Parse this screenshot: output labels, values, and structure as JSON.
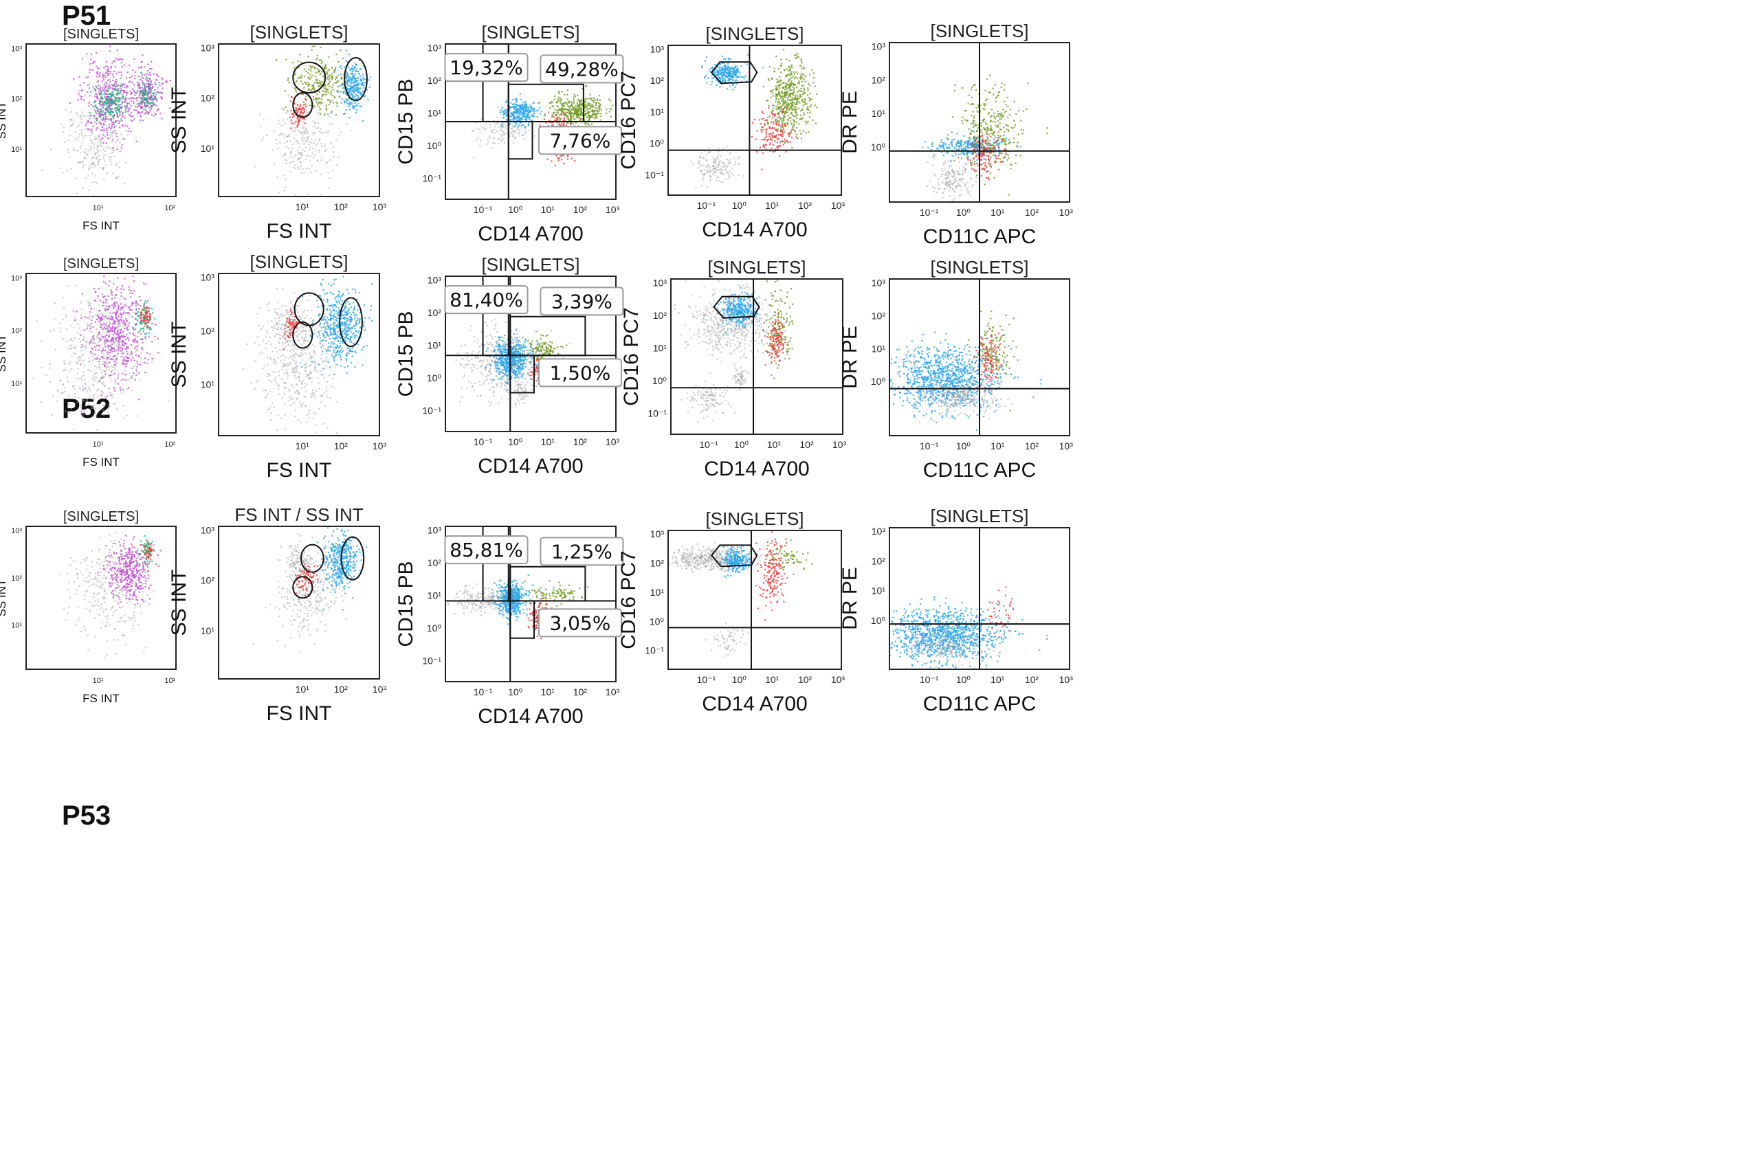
{
  "colors": {
    "grey": "#a6a6a6",
    "blue": "#2aa5e8",
    "green": "#6f9a1f",
    "red": "#e83a3a",
    "magenta": "#c24fd6",
    "teal": "#19b07a",
    "cyan": "#28d0e4"
  },
  "rows": [
    {
      "label": "P51",
      "panels": [
        {
          "title": "[SINGLETS]",
          "xlabel": "FS INT",
          "ylabel": "SS INT",
          "xticks": [
            "10¹",
            "10²"
          ],
          "yticks": [
            "10³",
            "10²",
            "10¹"
          ]
        },
        {
          "title": "[SINGLETS]",
          "xlabel": "FS INT",
          "ylabel": "SS INT",
          "xticks": [
            "10¹",
            "10²",
            "10³"
          ],
          "yticks": [
            "10³",
            "10²",
            "10¹"
          ]
        },
        {
          "title": "[SINGLETS]",
          "xlabel": "CD14 A700",
          "ylabel": "CD15 PB",
          "xticks": [
            "10⁻¹",
            "10⁰",
            "10¹",
            "10²",
            "10³"
          ],
          "yticks": [
            "10³",
            "10²",
            "10¹",
            "10⁰",
            "10⁻¹"
          ],
          "gates": [
            "19,32%",
            "49,28%",
            "7,76%"
          ]
        },
        {
          "title": "[SINGLETS]",
          "xlabel": "CD14 A700",
          "ylabel": "CD16 PC7",
          "xticks": [
            "10⁻¹",
            "10⁰",
            "10¹",
            "10²",
            "10³"
          ],
          "yticks": [
            "10³",
            "10²",
            "10¹",
            "10⁰",
            "10⁻¹"
          ]
        },
        {
          "title": "[SINGLETS]",
          "xlabel": "CD11C APC",
          "ylabel": "DR PE",
          "xticks": [
            "10⁻¹",
            "10⁰",
            "10¹",
            "10²",
            "10³"
          ],
          "yticks": [
            "10³",
            "10²",
            "10¹",
            "10⁰"
          ]
        }
      ]
    },
    {
      "label": "P52",
      "panels": [
        {
          "title": "[SINGLETS]",
          "xlabel": "FS INT",
          "ylabel": "SS INT",
          "xticks": [
            "10¹",
            "10²"
          ],
          "yticks": [
            "10³",
            "10²",
            "10¹"
          ]
        },
        {
          "title": "[SINGLETS]",
          "xlabel": "FS INT",
          "ylabel": "SS INT",
          "xticks": [
            "10¹",
            "10²",
            "10³"
          ],
          "yticks": [
            "10³",
            "10²",
            "10¹"
          ]
        },
        {
          "title": "[SINGLETS]",
          "xlabel": "CD14 A700",
          "ylabel": "CD15 PB",
          "xticks": [
            "10⁻¹",
            "10⁰",
            "10¹",
            "10²",
            "10³"
          ],
          "yticks": [
            "10³",
            "10²",
            "10¹",
            "10⁰",
            "10⁻¹"
          ],
          "gates": [
            "81,40%",
            "3,39%",
            "1,50%"
          ]
        },
        {
          "title": "[SINGLETS]",
          "xlabel": "CD14 A700",
          "ylabel": "CD16 PC7",
          "xticks": [
            "10⁻¹",
            "10⁰",
            "10¹",
            "10²",
            "10³"
          ],
          "yticks": [
            "10³",
            "10²",
            "10¹",
            "10⁰",
            "10⁻¹"
          ]
        },
        {
          "title": "[SINGLETS]",
          "xlabel": "CD11C APC",
          "ylabel": "DR PE",
          "xticks": [
            "10⁻¹",
            "10⁰",
            "10¹",
            "10²",
            "10³"
          ],
          "yticks": [
            "10³",
            "10²",
            "10¹",
            "10⁰"
          ]
        }
      ]
    },
    {
      "label": "P53",
      "panels": [
        {
          "title": "[SINGLETS]",
          "xlabel": "FS INT",
          "ylabel": "SS INT",
          "xticks": [
            "10¹",
            "10²"
          ],
          "yticks": [
            "10³",
            "10²",
            "10¹"
          ]
        },
        {
          "title": "FS INT / SS INT",
          "xlabel": "FS INT",
          "ylabel": "SS INT",
          "xticks": [
            "10¹",
            "10²",
            "10³"
          ],
          "yticks": [
            "10³",
            "10²",
            "10¹"
          ]
        },
        {
          "title": "",
          "xlabel": "CD14 A700",
          "ylabel": "CD15 PB",
          "xticks": [
            "10⁻¹",
            "10⁰",
            "10¹",
            "10²",
            "10³"
          ],
          "yticks": [
            "10³",
            "10²",
            "10¹",
            "10⁰",
            "10⁻¹"
          ],
          "gates": [
            "85,81%",
            "1,25%",
            "3,05%"
          ]
        },
        {
          "title": "[SINGLETS]",
          "xlabel": "CD14 A700",
          "ylabel": "CD16 PC7",
          "xticks": [
            "10⁻¹",
            "10⁰",
            "10¹",
            "10²",
            "10³"
          ],
          "yticks": [
            "10³",
            "10²",
            "10¹",
            "10⁰",
            "10⁻¹"
          ]
        },
        {
          "title": "[SINGLETS]",
          "xlabel": "CD11C APC",
          "ylabel": "DR PE",
          "xticks": [
            "10⁻¹",
            "10⁰",
            "10¹",
            "10²",
            "10³"
          ],
          "yticks": [
            "10³",
            "10²",
            "10¹",
            "10⁰"
          ]
        }
      ]
    }
  ],
  "chart_data": {
    "type": "scatter",
    "description_units": "log10 fluorescence / scatter intensity",
    "rows": [
      {
        "sample": "P51",
        "cd14_vs_cd15": {
          "gates": [
            {
              "label": "19,32%",
              "value": 19.32
            },
            {
              "label": "49,28%",
              "value": 49.28
            },
            {
              "label": "7,76%",
              "value": 7.76
            }
          ]
        }
      },
      {
        "sample": "P52",
        "cd14_vs_cd15": {
          "gates": [
            {
              "label": "81,40%",
              "value": 81.4
            },
            {
              "label": "3,39%",
              "value": 3.39
            },
            {
              "label": "1,50%",
              "value": 1.5
            }
          ]
        }
      },
      {
        "sample": "P53",
        "cd14_vs_cd15": {
          "gates": [
            {
              "label": "85,81%",
              "value": 85.81
            },
            {
              "label": "1,25%",
              "value": 1.25
            },
            {
              "label": "3,05%",
              "value": 3.05
            }
          ]
        }
      }
    ],
    "populations": [
      {
        "name": "grey",
        "color": "#a6a6a6"
      },
      {
        "name": "blue",
        "color": "#2aa5e8"
      },
      {
        "name": "green",
        "color": "#6f9a1f"
      },
      {
        "name": "red",
        "color": "#e83a3a"
      }
    ],
    "clusters": {
      "P51": [
        {
          "panel": 1,
          "x": 0.55,
          "y": 0.55,
          "dist": [
            [
              "magenta",
              450
            ],
            [
              "teal",
              180
            ]
          ]
        },
        {
          "panel": 1,
          "x": 0.83,
          "y": 0.6,
          "dist": [
            [
              "magenta",
              250
            ],
            [
              "teal",
              100
            ]
          ]
        },
        {
          "panel": 2,
          "x": 0.45,
          "y": 0.35,
          "dist": [
            [
              "grey",
              200
            ]
          ]
        },
        {
          "panel": 2,
          "x": 0.52,
          "y": 0.6,
          "dist": [
            [
              "green",
              250
            ],
            [
              "red",
              60
            ]
          ]
        },
        {
          "panel": 2,
          "x": 0.7,
          "y": 0.62,
          "dist": [
            [
              "blue",
              300
            ]
          ]
        },
        {
          "panel": 3,
          "x": 0.35,
          "y": 0.45,
          "dist": [
            [
              "blue",
              350
            ]
          ]
        },
        {
          "panel": 3,
          "x": 0.55,
          "y": 0.5,
          "dist": [
            [
              "green",
              450
            ]
          ]
        },
        {
          "panel": 3,
          "x": 0.5,
          "y": 0.4,
          "dist": [
            [
              "red",
              200
            ]
          ]
        },
        {
          "panel": 3,
          "x": 0.25,
          "y": 0.55,
          "dist": [
            [
              "grey",
              120
            ]
          ]
        },
        {
          "panel": 4,
          "x": 0.4,
          "y": 0.8,
          "dist": [
            [
              "blue",
              300
            ]
          ]
        },
        {
          "panel": 4,
          "x": 0.6,
          "y": 0.6,
          "dist": [
            [
              "green",
              500
            ],
            [
              "red",
              150
            ]
          ]
        },
        {
          "panel": 4,
          "x": 0.3,
          "y": 0.2,
          "dist": [
            [
              "grey",
              150
            ]
          ]
        },
        {
          "panel": 5,
          "x": 0.45,
          "y": 0.4,
          "dist": [
            [
              "blue",
              300
            ],
            [
              "green",
              300
            ],
            [
              "red",
              120
            ]
          ]
        },
        {
          "panel": 5,
          "x": 0.3,
          "y": 0.2,
          "dist": [
            [
              "grey",
              150
            ]
          ]
        }
      ]
    }
  }
}
